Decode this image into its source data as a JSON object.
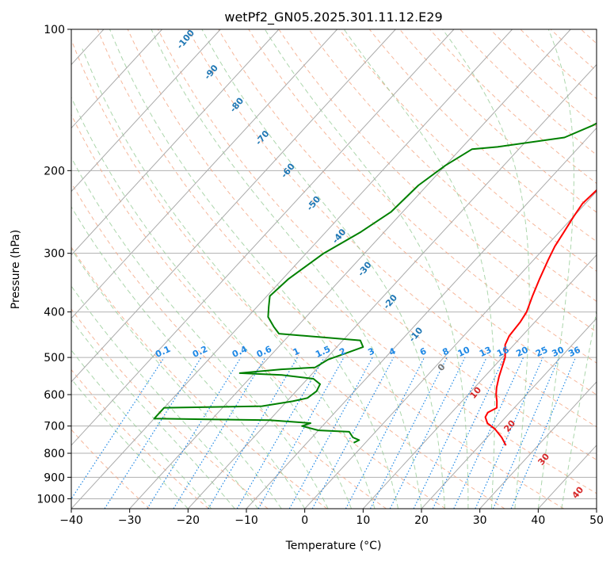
{
  "chart_data": {
    "type": "line",
    "title": "wetPf2_GN05.2025.301.11.12.E29",
    "xlabel": "Temperature (°C)",
    "ylabel": "Pressure (hPa)",
    "xlim": [
      -40,
      50
    ],
    "ylim": [
      1050,
      100
    ],
    "y_scale": "log",
    "x_ticks": [
      -40,
      -30,
      -20,
      -10,
      0,
      10,
      20,
      30,
      40,
      50
    ],
    "y_ticks": [
      100,
      200,
      300,
      400,
      500,
      600,
      700,
      800,
      900,
      1000
    ],
    "grid": true,
    "legend": "none",
    "colors": {
      "temperature": "#ff0000",
      "dewpoint": "#008000",
      "isotherm": "#aaaaaa",
      "dry_adiabat": "#f4a582",
      "moist_adiabat": "#90c890",
      "mixing_ratio": "#1e88e5",
      "dry_adiabat_label": "#d62728",
      "moist_adiabat_label": "#1f77b4"
    },
    "series": [
      {
        "name": "",
        "role": "temperature",
        "x": [
          24.5,
          22.5,
          20.0,
          17.8,
          16.5,
          16.2,
          17.0,
          16.0,
          14.8,
          13.8,
          12.5,
          10.5,
          8.5,
          7.8,
          7.5,
          7.0,
          5.5,
          4.0,
          2.5,
          1.5,
          0.8,
          0.0,
          -0.5,
          -0.2,
          0.3,
          0.5,
          1.5,
          2.5,
          3.0,
          3.5,
          5.5,
          7.0,
          8.5,
          10.5,
          12.0,
          13.0
        ],
        "y": [
          770,
          740,
          710,
          690,
          670,
          655,
          640,
          620,
          600,
          580,
          550,
          500,
          470,
          450,
          420,
          400,
          370,
          340,
          310,
          290,
          270,
          250,
          235,
          220,
          210,
          200,
          185,
          170,
          160,
          150,
          140,
          130,
          125,
          115,
          105,
          100
        ]
      },
      {
        "name": "",
        "role": "dewpoint",
        "x": [
          -2.0,
          -1.5,
          -3.0,
          -4.5,
          -10.0,
          -13.5,
          -12.5,
          -20.0,
          -40.0,
          -40.0,
          -23.5,
          -19.0,
          -17.0,
          -16.5,
          -17.0,
          -19.0,
          -25.0,
          -32.5,
          -26.0,
          -20.5,
          -19.5,
          -17.5,
          -15.5,
          -17.0,
          -32.0,
          -34.0,
          -36.5,
          -38.0,
          -39.5,
          -39.0,
          -37.0,
          -34.0,
          -32.0,
          -31.5,
          -30.0,
          -28.0,
          -24.0,
          -14.0,
          -11.0,
          -7.0,
          -4.5,
          0.0,
          3.5
        ],
        "y": [
          760,
          750,
          740,
          720,
          715,
          700,
          690,
          680,
          675,
          640,
          635,
          620,
          610,
          590,
          570,
          555,
          545,
          540,
          530,
          525,
          505,
          490,
          475,
          460,
          445,
          430,
          410,
          390,
          370,
          340,
          300,
          270,
          245,
          215,
          195,
          180,
          178,
          170,
          160,
          140,
          130,
          115,
          100
        ]
      }
    ],
    "mixing_ratio_labels": [
      "0.1",
      "0.2",
      "0.4",
      "0.6",
      "1",
      "1.5",
      "2",
      "3",
      "4",
      "6",
      "8",
      "10",
      "13",
      "16",
      "20",
      "25",
      "30",
      "36"
    ],
    "dry_adiabat_labels": [
      "10",
      "20",
      "30",
      "40"
    ],
    "moist_adiabat_labels": [
      "-100",
      "-90",
      "-80",
      "-70",
      "-60",
      "-50",
      "-40",
      "-30",
      "-20",
      "-10",
      "0"
    ]
  }
}
